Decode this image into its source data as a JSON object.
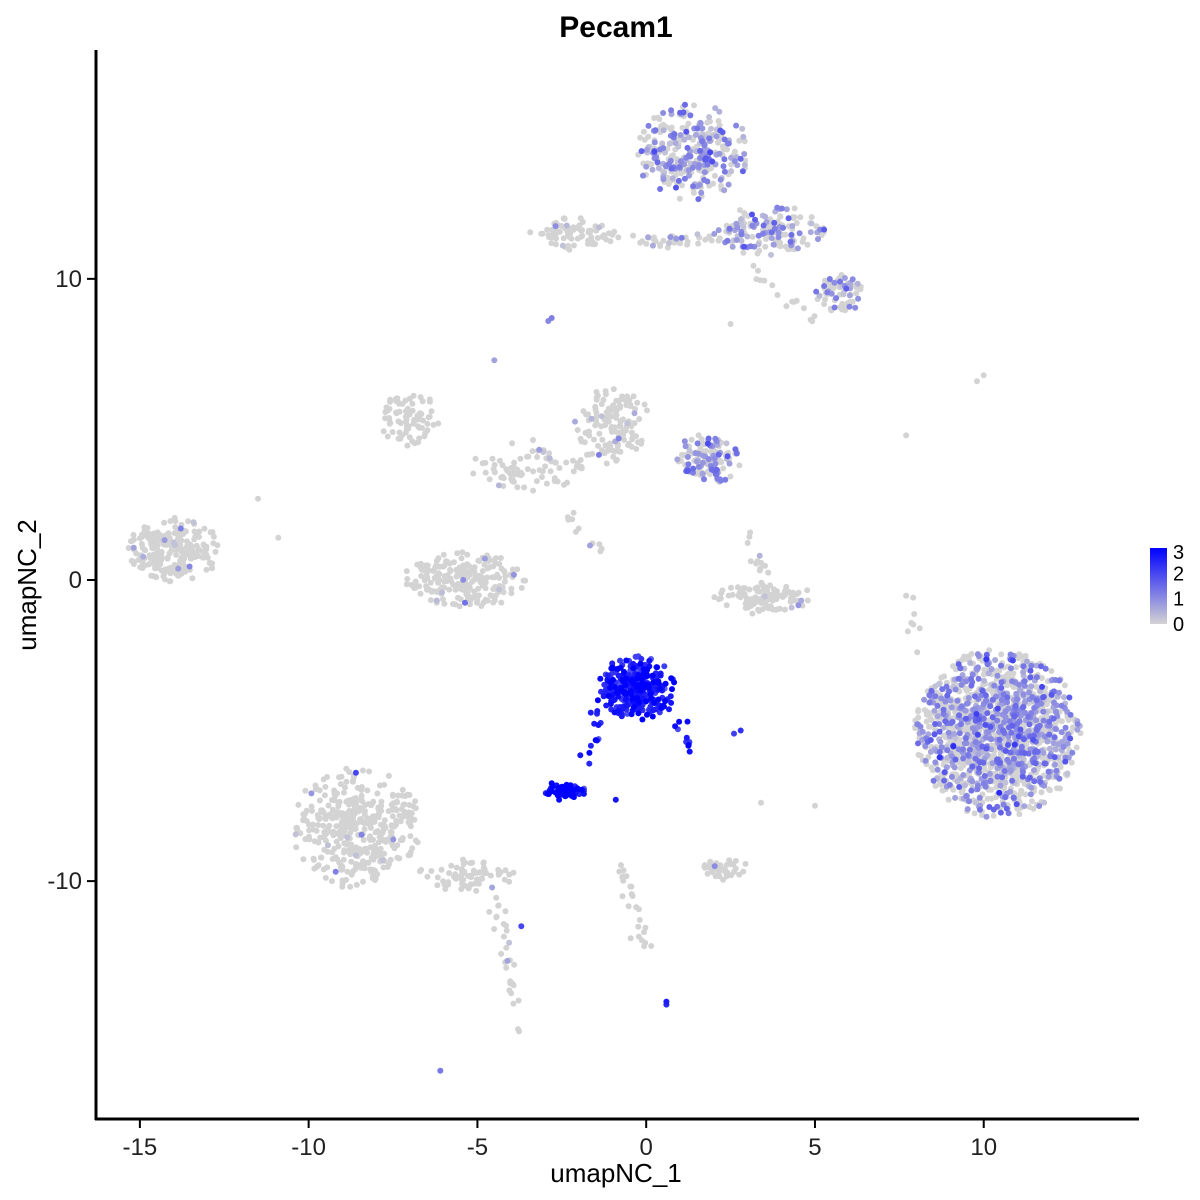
{
  "chart_data": {
    "type": "scatter",
    "title": "Pecam1",
    "xlabel": "umapNC_1",
    "ylabel": "umapNC_2",
    "xlim": [
      -16.3,
      14.6
    ],
    "ylim": [
      -17.9,
      17.6
    ],
    "xticks": [
      -15,
      -10,
      -5,
      0,
      5,
      10
    ],
    "xtick_labels": [
      "-15",
      "-10",
      "-5",
      "0",
      "5",
      "10"
    ],
    "yticks": [
      -10,
      0,
      10
    ],
    "ytick_labels": [
      "-10",
      "0",
      "10"
    ],
    "grid": false,
    "legend": {
      "position": "right",
      "type": "colorbar",
      "range": [
        0,
        3
      ],
      "ticks": [
        0,
        1,
        2,
        3
      ],
      "tick_labels": [
        "0",
        "1",
        "2",
        "3"
      ],
      "low_color": "#d3d3d3",
      "high_color": "#0000ff"
    },
    "clusters": [
      {
        "id": "top-right-head",
        "cx": 1.4,
        "cy": 14.2,
        "rx": 1.6,
        "ry": 1.5,
        "n": 320,
        "expr_prob": 0.5,
        "expr_mean": 0.9
      },
      {
        "id": "top-right-arm",
        "cx": 3.6,
        "cy": 11.6,
        "rx": 1.6,
        "ry": 0.8,
        "n": 150,
        "expr_prob": 0.4,
        "expr_mean": 0.8
      },
      {
        "id": "top-right-tip",
        "cx": 5.7,
        "cy": 9.5,
        "rx": 0.7,
        "ry": 0.6,
        "n": 70,
        "expr_prob": 0.35,
        "expr_mean": 0.8
      },
      {
        "id": "top-left-arm",
        "cx": -2.2,
        "cy": 11.5,
        "rx": 1.2,
        "ry": 0.5,
        "n": 80,
        "expr_prob": 0.08,
        "expr_mean": 0.7
      },
      {
        "id": "top-connector",
        "cx": 0.5,
        "cy": 11.3,
        "rx": 1.5,
        "ry": 0.3,
        "n": 40,
        "expr_prob": 0.15,
        "expr_mean": 0.6
      },
      {
        "id": "mid-upper-left",
        "cx": -7.0,
        "cy": 5.3,
        "rx": 0.8,
        "ry": 0.9,
        "n": 80,
        "expr_prob": 0.0,
        "expr_mean": 0.0
      },
      {
        "id": "mid-center",
        "cx": -1.0,
        "cy": 5.1,
        "rx": 1.1,
        "ry": 1.2,
        "n": 140,
        "expr_prob": 0.05,
        "expr_mean": 0.6
      },
      {
        "id": "mid-center-right",
        "cx": 1.8,
        "cy": 4.0,
        "rx": 1.0,
        "ry": 0.8,
        "n": 140,
        "expr_prob": 0.45,
        "expr_mean": 0.9
      },
      {
        "id": "mid-branches",
        "cx": -3.5,
        "cy": 3.8,
        "rx": 1.6,
        "ry": 0.8,
        "n": 80,
        "expr_prob": 0.03,
        "expr_mean": 0.6
      },
      {
        "id": "left-far",
        "cx": -14.0,
        "cy": 1.0,
        "rx": 1.3,
        "ry": 1.0,
        "n": 240,
        "expr_prob": 0.03,
        "expr_mean": 0.6
      },
      {
        "id": "center-bowl",
        "cx": -5.4,
        "cy": 0.0,
        "rx": 1.7,
        "ry": 0.9,
        "n": 220,
        "expr_prob": 0.02,
        "expr_mean": 0.6
      },
      {
        "id": "right-arc",
        "cx": 3.5,
        "cy": -0.6,
        "rx": 1.4,
        "ry": 0.5,
        "n": 110,
        "expr_prob": 0.02,
        "expr_mean": 0.6
      },
      {
        "id": "endothelial-main",
        "cx": -0.3,
        "cy": -3.6,
        "rx": 1.1,
        "ry": 1.0,
        "n": 300,
        "expr_prob": 1.0,
        "expr_mean": 2.6
      },
      {
        "id": "endothelial-small",
        "cx": -2.4,
        "cy": -7.0,
        "rx": 0.6,
        "ry": 0.3,
        "n": 70,
        "expr_prob": 1.0,
        "expr_mean": 2.8
      },
      {
        "id": "bottom-left-body",
        "cx": -8.6,
        "cy": -8.2,
        "rx": 1.8,
        "ry": 1.9,
        "n": 420,
        "expr_prob": 0.01,
        "expr_mean": 0.6
      },
      {
        "id": "bottom-left-tail",
        "cx": -5.3,
        "cy": -9.8,
        "rx": 1.4,
        "ry": 0.5,
        "n": 70,
        "expr_prob": 0.03,
        "expr_mean": 0.6
      },
      {
        "id": "right-big",
        "cx": 10.4,
        "cy": -5.1,
        "rx": 2.3,
        "ry": 2.6,
        "n": 1500,
        "expr_prob": 0.45,
        "expr_mean": 0.9
      },
      {
        "id": "bottom-small-right",
        "cx": 2.3,
        "cy": -9.6,
        "rx": 0.7,
        "ry": 0.35,
        "n": 40,
        "expr_prob": 0.05,
        "expr_mean": 0.6
      }
    ],
    "trails": [
      {
        "id": "endothelial-stem",
        "from": [
          -1.3,
          -4.0
        ],
        "to": [
          -1.8,
          -6.1
        ],
        "n": 14,
        "expr_prob": 1.0,
        "expr_mean": 2.6
      },
      {
        "id": "endothelial-right-leg",
        "from": [
          0.7,
          -4.3
        ],
        "to": [
          1.2,
          -5.4
        ],
        "n": 12,
        "expr_prob": 1.0,
        "expr_mean": 2.5
      },
      {
        "id": "bottom-tail",
        "from": [
          -4.5,
          -10.5
        ],
        "to": [
          -3.8,
          -14.8
        ],
        "n": 30,
        "expr_prob": 0.03,
        "expr_mean": 0.6
      },
      {
        "id": "bottom-center-tail",
        "from": [
          -0.8,
          -9.2
        ],
        "to": [
          0.0,
          -12.3
        ],
        "n": 25,
        "expr_prob": 0.02,
        "expr_mean": 0.6
      },
      {
        "id": "top-right-arm-down",
        "from": [
          3.0,
          10.4
        ],
        "to": [
          5.0,
          8.7
        ],
        "n": 15,
        "expr_prob": 0.1,
        "expr_mean": 0.7
      },
      {
        "id": "mid-center-stem",
        "from": [
          -2.4,
          2.6
        ],
        "to": [
          -1.4,
          1.1
        ],
        "n": 12,
        "expr_prob": 0.02,
        "expr_mean": 0.6
      },
      {
        "id": "right-vertical",
        "from": [
          7.8,
          -0.2
        ],
        "to": [
          8.1,
          -2.2
        ],
        "n": 8,
        "expr_prob": 0.0,
        "expr_mean": 0.0
      },
      {
        "id": "mid-right-stem",
        "from": [
          3.0,
          1.5
        ],
        "to": [
          3.5,
          0.2
        ],
        "n": 12,
        "expr_prob": 0.1,
        "expr_mean": 0.6
      }
    ],
    "points": [
      {
        "x": 0.6,
        "y": -14.0,
        "v": 2.6
      },
      {
        "x": 0.6,
        "y": -14.1,
        "v": 2.4
      },
      {
        "x": -0.9,
        "y": -7.3,
        "v": 2.7
      },
      {
        "x": 2.8,
        "y": -5.0,
        "v": 2.3
      },
      {
        "x": 2.6,
        "y": -5.1,
        "v": 2.1
      },
      {
        "x": -2.8,
        "y": 8.7,
        "v": 1.2
      },
      {
        "x": -2.9,
        "y": 8.6,
        "v": 1.1
      },
      {
        "x": -4.5,
        "y": 7.3,
        "v": 0.7
      },
      {
        "x": -6.1,
        "y": -16.3,
        "v": 1.3
      },
      {
        "x": -3.7,
        "y": -11.5,
        "v": 2.0
      },
      {
        "x": 9.8,
        "y": 6.6,
        "v": 0.0
      },
      {
        "x": 10.0,
        "y": 6.8,
        "v": 0.0
      },
      {
        "x": 7.7,
        "y": 4.8,
        "v": 0.0
      },
      {
        "x": 2.5,
        "y": 8.5,
        "v": 0.0
      },
      {
        "x": -8.6,
        "y": -6.4,
        "v": 2.0
      },
      {
        "x": 5.0,
        "y": -7.5,
        "v": 0.0
      },
      {
        "x": 3.4,
        "y": -7.4,
        "v": 0.0
      },
      {
        "x": -11.5,
        "y": 2.7,
        "v": 0.0
      },
      {
        "x": -10.9,
        "y": 1.4,
        "v": 0.0
      }
    ]
  }
}
